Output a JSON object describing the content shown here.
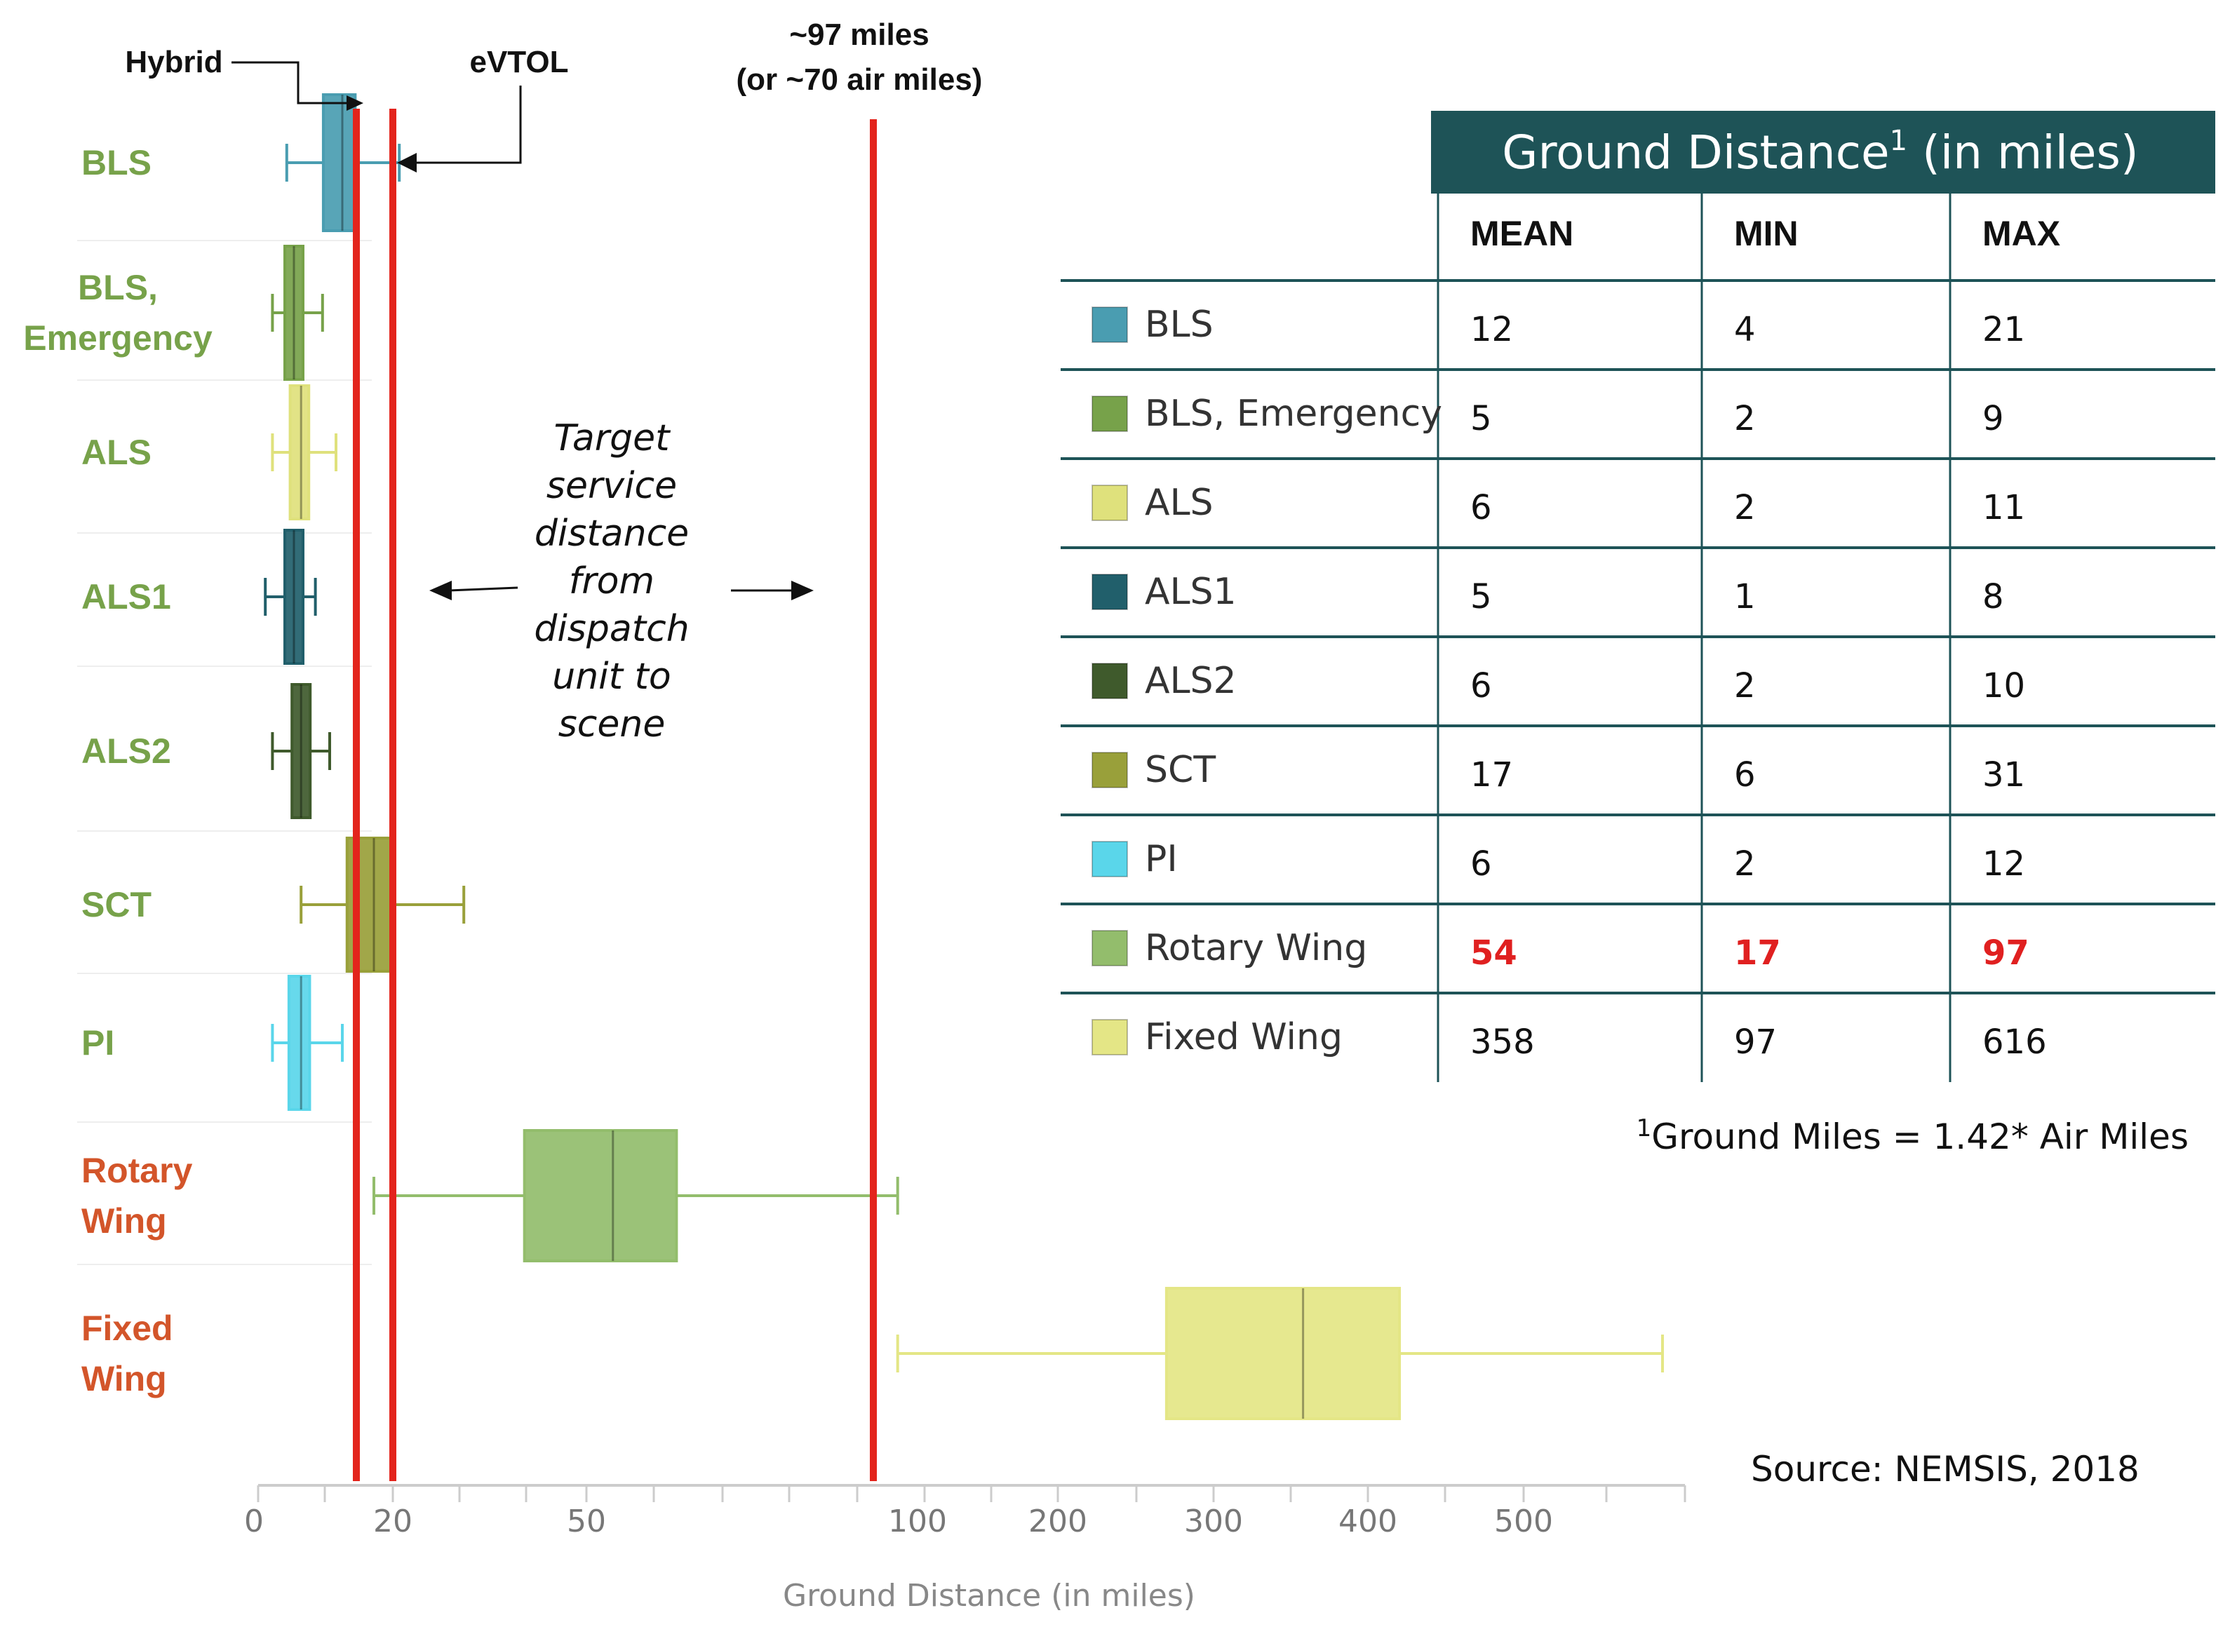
{
  "chart_data": {
    "type": "box",
    "title": "",
    "xlabel": "Ground Distance (in miles)",
    "ylabel": "",
    "x_axis": {
      "scale": "piecewise",
      "tick_labels": [
        "0",
        "20",
        "50",
        "100",
        "200",
        "300",
        "400",
        "500"
      ]
    },
    "series": [
      {
        "name": "BLS",
        "color": "#4a9db1",
        "label_color": "#77a24a",
        "mean": 12,
        "min": 4,
        "max": 21
      },
      {
        "name": "BLS, Emergency",
        "display_label": "BLS,\nEmergency",
        "color": "#77a24a",
        "label_color": "#77a24a",
        "mean": 5,
        "min": 2,
        "max": 9
      },
      {
        "name": "ALS",
        "color": "#dfe17c",
        "label_color": "#77a24a",
        "mean": 6,
        "min": 2,
        "max": 11
      },
      {
        "name": "ALS1",
        "color": "#215f6b",
        "label_color": "#77a24a",
        "mean": 5,
        "min": 1,
        "max": 8
      },
      {
        "name": "ALS2",
        "color": "#3f5a2c",
        "label_color": "#77a24a",
        "mean": 6,
        "min": 2,
        "max": 10
      },
      {
        "name": "SCT",
        "color": "#99a03a",
        "label_color": "#77a24a",
        "mean": 17,
        "min": 6,
        "max": 31
      },
      {
        "name": "PI",
        "color": "#5ad6ea",
        "label_color": "#77a24a",
        "mean": 6,
        "min": 2,
        "max": 12
      },
      {
        "name": "Rotary Wing",
        "display_label": "Rotary\nWing",
        "color": "#93bd6c",
        "label_color": "#d3552a",
        "mean": 54,
        "min": 17,
        "max": 97
      },
      {
        "name": "Fixed Wing",
        "display_label": "Fixed\nWing",
        "color": "#e4e686",
        "label_color": "#d3552a",
        "mean": 358,
        "min": 97,
        "max": 616
      }
    ],
    "reference_lines": [
      {
        "label": "Hybrid",
        "color": "#e3241c"
      },
      {
        "label": "eVTOL",
        "color": "#e3241c"
      },
      {
        "label": "~97 miles\n(or ~70 air miles)",
        "color": "#e3241c"
      }
    ],
    "annotation": "Target\nservice\ndistance\nfrom\ndispatch\nunit to\nscene",
    "table": {
      "title": "Ground Distance",
      "title_sup": "1",
      "title_suffix": " (in miles)",
      "header_color": "#1e5357",
      "columns": [
        "MEAN",
        "MIN",
        "MAX"
      ],
      "highlight_row": "Rotary Wing",
      "highlight_color": "#e02020"
    },
    "footnote": {
      "sup": "1",
      "text": "Ground Miles = 1.42* Air Miles"
    },
    "source": "Source: NEMSIS, 2018"
  }
}
